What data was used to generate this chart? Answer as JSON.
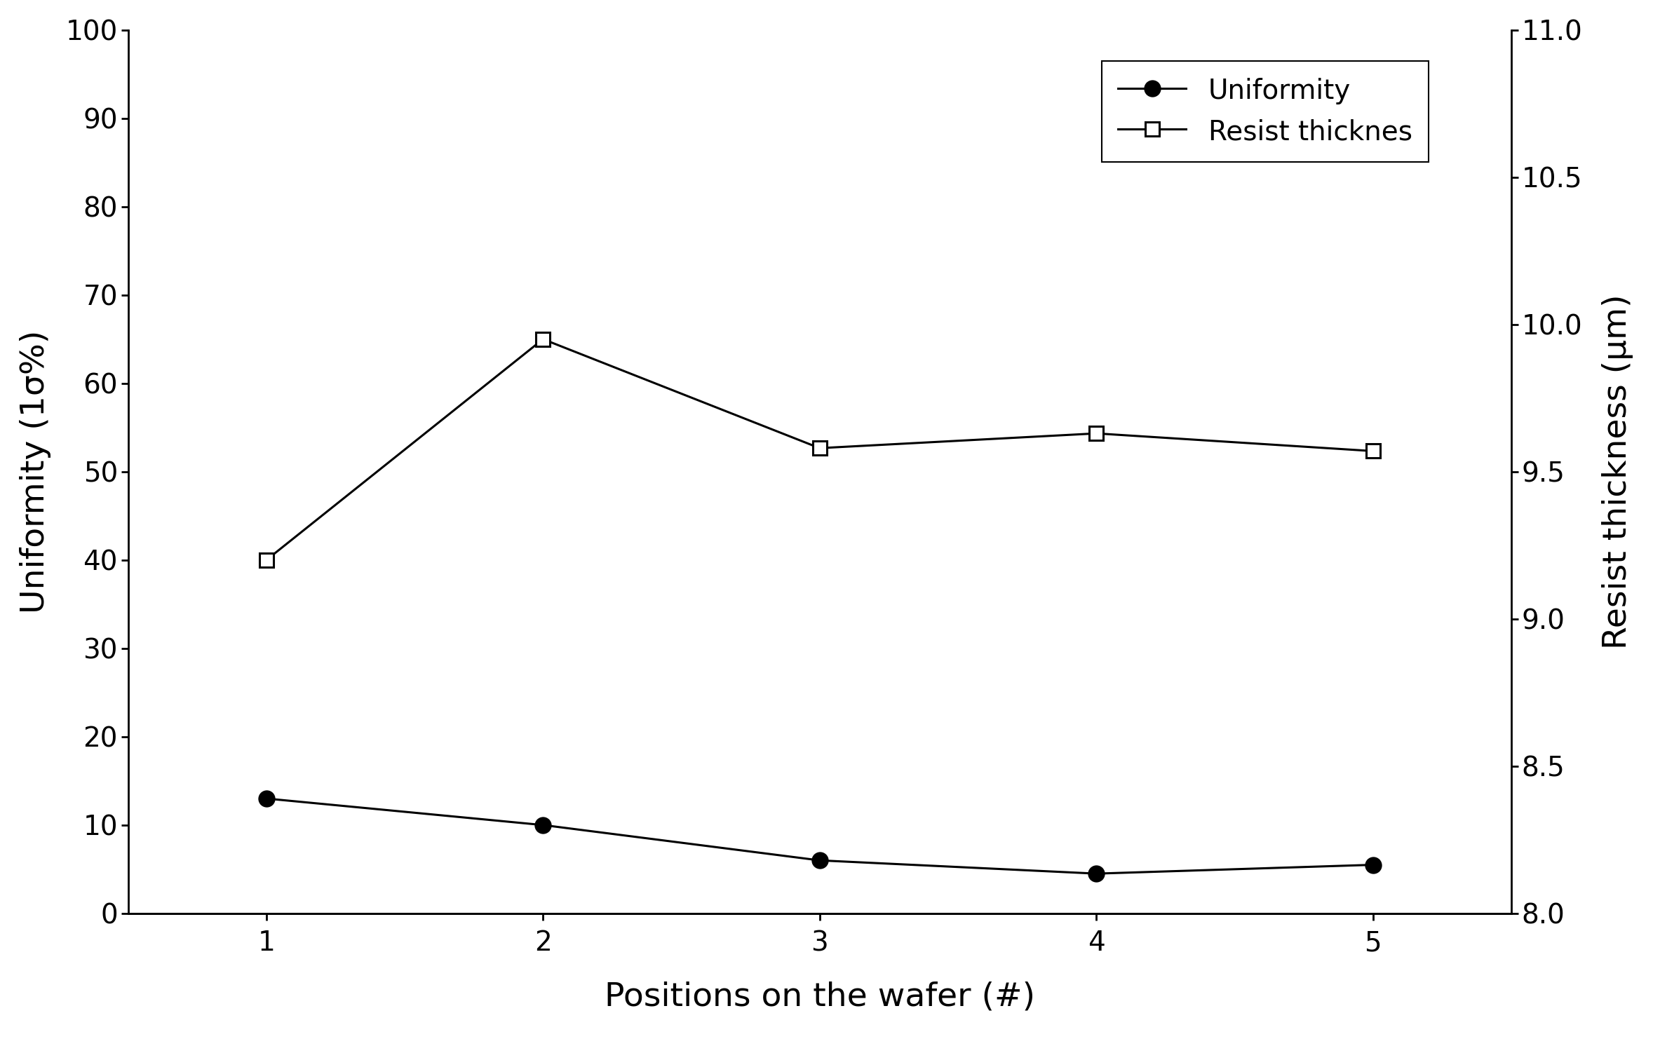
{
  "x": [
    1,
    2,
    3,
    4,
    5
  ],
  "uniformity": [
    13,
    10,
    6,
    4.5,
    5.5
  ],
  "resist_thickness": [
    9.2,
    9.95,
    9.58,
    9.63,
    9.57
  ],
  "ylabel_left": "Uniformity (1σ%)",
  "ylabel_right": "Resist thickness (μm)",
  "xlabel": "Positions on the wafer (#)",
  "legend_uniformity": "Uniformity",
  "legend_resist": "Resist thicknes",
  "ylim_left": [
    0,
    100
  ],
  "ylim_right": [
    8.0,
    11.0
  ],
  "yticks_left": [
    0,
    10,
    20,
    30,
    40,
    50,
    60,
    70,
    80,
    90,
    100
  ],
  "yticks_right": [
    8.0,
    8.5,
    9.0,
    9.5,
    10.0,
    10.5,
    11.0
  ],
  "xticks": [
    1,
    2,
    3,
    4,
    5
  ],
  "line_color": "#000000",
  "background_color": "#ffffff",
  "tick_fontsize": 28,
  "label_fontsize": 34,
  "legend_fontsize": 28,
  "linewidth": 2.2,
  "markersize_circle": 16,
  "markersize_square": 14
}
